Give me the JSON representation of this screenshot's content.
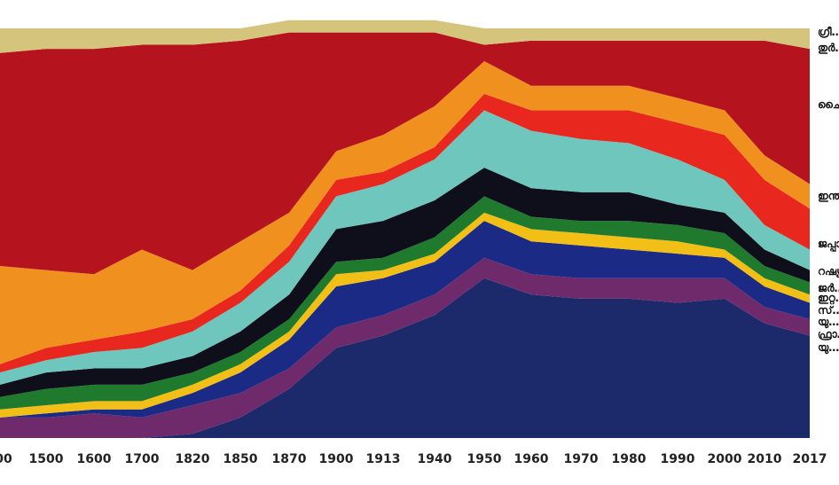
{
  "chart_data": {
    "type": "area",
    "stacked": true,
    "normalized_to": 100,
    "x": [
      "00",
      "1500",
      "1600",
      "1700",
      "1820",
      "1850",
      "1870",
      "1900",
      "1913",
      "1940",
      "1950",
      "1960",
      "1970",
      "1980",
      "1990",
      "2000",
      "2010",
      "2017"
    ],
    "ylim": [
      0,
      100
    ],
    "grid": false,
    "legend": "right",
    "series": [
      {
        "name": "യു…",
        "color": "#1c2a6b",
        "values": [
          0,
          0,
          0,
          0,
          1,
          5,
          12,
          22,
          25,
          30,
          39,
          35,
          34,
          34,
          33,
          34,
          28,
          25
        ]
      },
      {
        "name": "ഫ്രാ…",
        "color": "#6e2a6a",
        "values": [
          5,
          5,
          6,
          5,
          7,
          6,
          5,
          5,
          5,
          5,
          5,
          5,
          5,
          5,
          6,
          5,
          4,
          4
        ]
      },
      {
        "name": "യു…",
        "color": "#1b2a85",
        "values": [
          0,
          1,
          1,
          2,
          3,
          5,
          7,
          10,
          9,
          8,
          9,
          8,
          8,
          7,
          6,
          5,
          5,
          4
        ]
      },
      {
        "name": "സ്…",
        "color": "#f2bf17",
        "values": [
          2,
          2,
          2,
          2,
          2,
          2,
          2,
          3,
          2,
          2,
          2,
          3,
          3,
          3,
          3,
          2,
          2,
          2
        ]
      },
      {
        "name": "ഇറ്റ…",
        "color": "#1f7a2e",
        "values": [
          3,
          4,
          4,
          4,
          3,
          3,
          3,
          3,
          3,
          4,
          4,
          3,
          3,
          4,
          4,
          4,
          3,
          3
        ]
      },
      {
        "name": "ജർ…",
        "color": "#0e0f1a",
        "values": [
          3,
          4,
          4,
          4,
          4,
          5,
          6,
          8,
          9,
          9,
          7,
          7,
          7,
          7,
          5,
          5,
          4,
          3
        ]
      },
      {
        "name": "റഷ്യ…",
        "color": "#6ec6bd",
        "values": [
          3,
          3,
          4,
          5,
          6,
          7,
          8,
          8,
          9,
          10,
          14,
          14,
          13,
          12,
          11,
          8,
          6,
          5
        ]
      },
      {
        "name": "ജപ്പാ…",
        "color": "#e8271e",
        "values": [
          2,
          3,
          3,
          4,
          3,
          3,
          4,
          4,
          3,
          3,
          4,
          5,
          7,
          8,
          9,
          11,
          11,
          10
        ]
      },
      {
        "name": "ഇന്ത്യ…",
        "color": "#f0911f",
        "values": [
          24,
          19,
          16,
          20,
          12,
          12,
          8,
          7,
          9,
          10,
          8,
          6,
          6,
          6,
          6,
          6,
          6,
          6
        ]
      },
      {
        "name": "ചൈ…",
        "color": "#b5141e",
        "values": [
          52,
          54,
          55,
          50,
          55,
          49,
          44,
          29,
          25,
          18,
          4,
          11,
          11,
          11,
          14,
          17,
          28,
          33
        ]
      },
      {
        "name": "ഗ്രീ… തുർ…",
        "color": "#d4c47c",
        "values": [
          6,
          5,
          5,
          4,
          4,
          3,
          3,
          3,
          3,
          3,
          4,
          3,
          3,
          3,
          3,
          3,
          3,
          5
        ]
      }
    ]
  }
}
